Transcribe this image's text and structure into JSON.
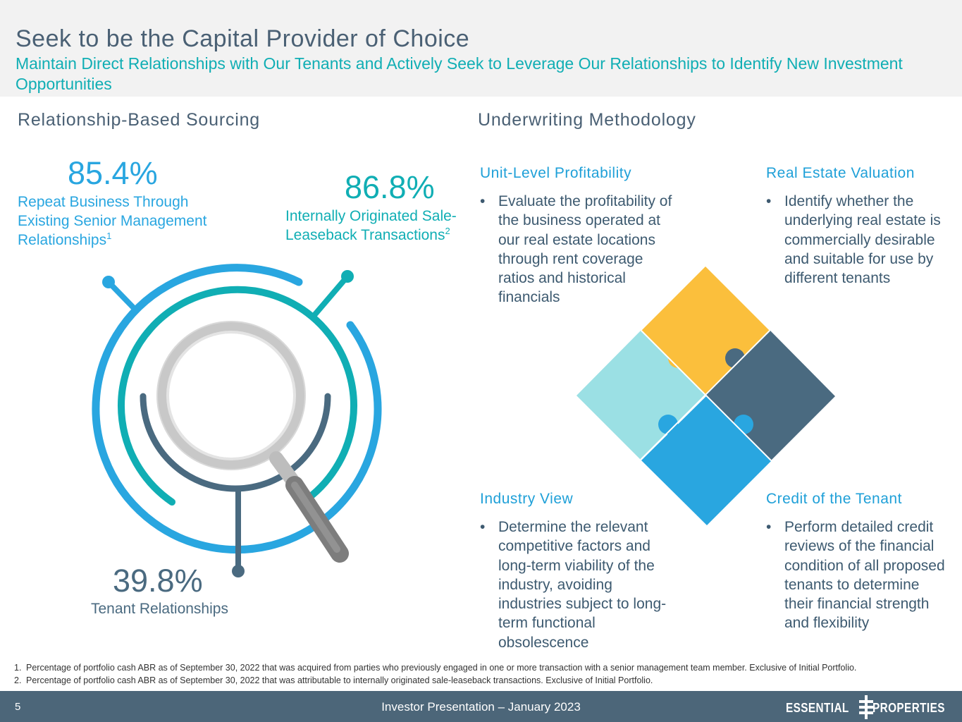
{
  "header": {
    "title": "Seek to be the Capital Provider of Choice",
    "subtitle": "Maintain Direct Relationships with Our Tenants and Actively Seek to Leverage Our Relationships to Identify New Investment Opportunities"
  },
  "left": {
    "section_title": "Relationship-Based Sourcing",
    "stat1": {
      "value": "85.4%",
      "label_lines": [
        "Repeat Business Through",
        "Existing Senior Management",
        "Relationships"
      ],
      "note": "1"
    },
    "stat2": {
      "value": "86.8%",
      "label_lines": [
        "Internally Originated Sale-",
        "Leaseback Transactions"
      ],
      "note": "2"
    },
    "stat3": {
      "value": "39.8%",
      "label": "Tenant Relationships"
    }
  },
  "right": {
    "section_title": "Underwriting Methodology",
    "unit": {
      "heading": "Unit-Level Profitability",
      "bullet": "Evaluate the profitability of the business operated at our real estate locations through rent coverage ratios and historical financials"
    },
    "real_estate": {
      "heading": "Real Estate Valuation",
      "bullet": "Identify whether the underlying real estate is commercially desirable and suitable for use by different tenants"
    },
    "industry": {
      "heading": "Industry View",
      "bullet": "Determine the relevant competitive factors and long-term viability of the industry, avoiding industries subject to long-term functional obsolescence"
    },
    "credit": {
      "heading": "Credit of the Tenant",
      "bullet": "Perform detailed credit reviews of the financial condition of all proposed tenants to determine their financial strength and flexibility"
    }
  },
  "footnotes": [
    {
      "num": "1.",
      "text": "Percentage of portfolio cash ABR as of September 30, 2022 that was acquired from parties who previously engaged in one or more transaction with a senior management team member. Exclusive of Initial Portfolio."
    },
    {
      "num": "2.",
      "text": "Percentage of portfolio cash ABR as of September 30, 2022 that was attributable to internally originated sale-leaseback transactions. Exclusive of Initial Portfolio."
    }
  ],
  "footer": {
    "page_number": "5",
    "center_text": "Investor Presentation – January 2023",
    "logo_left": "ESSENTIAL",
    "logo_right": "PROPERTIES"
  },
  "colors": {
    "teal": "#10aeb4",
    "blue": "#29a6e0",
    "slate": "#4a6a80",
    "yellow": "#fbbf3c",
    "light_aqua": "#9be0e4",
    "footer_bg": "#4c6679"
  },
  "icons": [
    "magnifier-icon",
    "puzzle-icon",
    "logo-mark-icon"
  ]
}
